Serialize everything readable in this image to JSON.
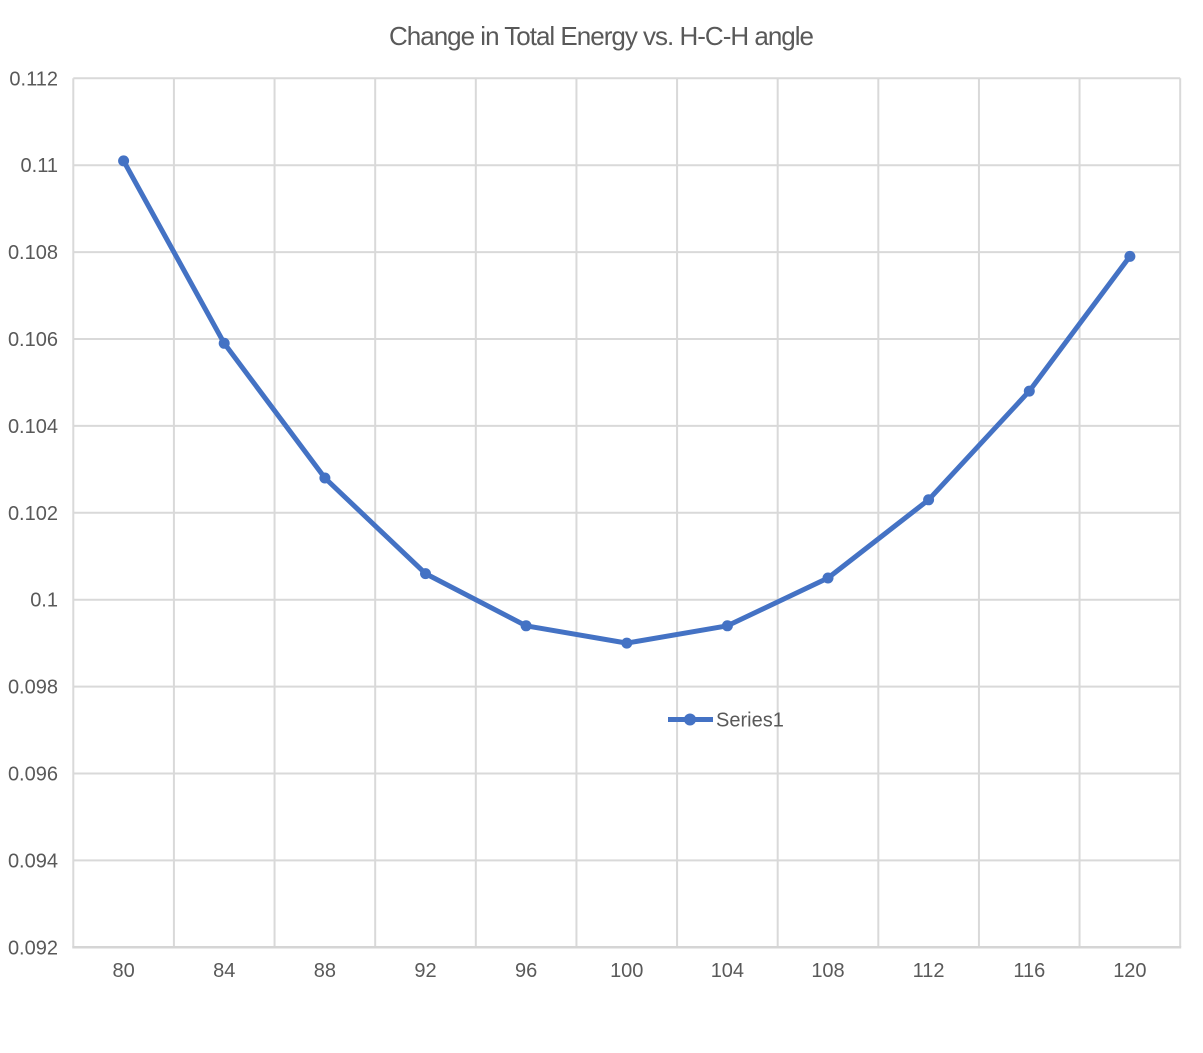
{
  "chart_data": {
    "type": "line",
    "title": "Change in Total Energy vs. H-C-H angle",
    "categories": [
      80,
      84,
      88,
      92,
      96,
      100,
      104,
      108,
      112,
      116,
      120
    ],
    "series": [
      {
        "name": "Series1",
        "values": [
          0.1101,
          0.1059,
          0.1028,
          0.1006,
          0.0994,
          0.099,
          0.0994,
          0.1005,
          0.1023,
          0.1048,
          0.1079
        ],
        "marker": "circle"
      }
    ],
    "xlabel": "",
    "ylabel": "",
    "ylim": [
      0.092,
      0.112
    ],
    "ytick_step": 0.002,
    "ytick_labels": [
      "0.112",
      "0.11",
      "0.108",
      "0.106",
      "0.104",
      "0.102",
      "0.1",
      "0.098",
      "0.096",
      "0.094",
      "0.092"
    ],
    "xtick_labels": [
      "80",
      "84",
      "88",
      "92",
      "96",
      "100",
      "104",
      "108",
      "112",
      "116",
      "120"
    ],
    "grid": true,
    "axis_position": "between-ticks",
    "legend": {
      "label": "Series1",
      "position": "inside-plot-center-right"
    },
    "colors": {
      "series": "#4472C4",
      "gridline": "#D9D9D9",
      "axis_line": "#D5D5D5",
      "text": "#595959",
      "background": "#FFFFFF"
    }
  }
}
